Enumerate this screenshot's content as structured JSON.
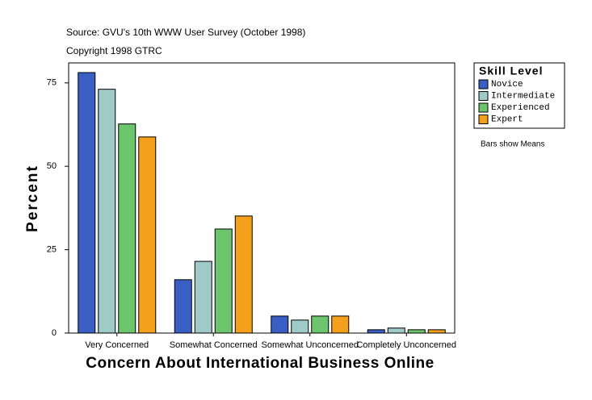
{
  "chart_data": {
    "type": "bar",
    "source": "Source: GVU's 10th WWW User Survey (October 1998)",
    "copyright": "Copyright 1998 GTRC",
    "note": "Bars show Means",
    "legend_title": "Skill Level",
    "x_label": "Concern About International Business Online",
    "y_label": "Percent",
    "categories": [
      "Very Concerned",
      "Somewhat Concerned",
      "Somewhat Unconcerned",
      "Completely Unconcerned"
    ],
    "series": [
      {
        "name": "Novice",
        "color": "#3a5fc4",
        "values": [
          78.1,
          16.0,
          5.1,
          1.0
        ]
      },
      {
        "name": "Intermediate",
        "color": "#9ecac8",
        "values": [
          73.1,
          21.5,
          3.9,
          1.5
        ]
      },
      {
        "name": "Experienced",
        "color": "#6cc46c",
        "values": [
          62.7,
          31.2,
          5.1,
          1.0
        ]
      },
      {
        "name": "Expert",
        "color": "#f4a01c",
        "values": [
          58.8,
          35.1,
          5.1,
          1.0
        ]
      }
    ],
    "ylim": [
      0,
      81
    ],
    "yticks": [
      0,
      25,
      50,
      75
    ]
  }
}
